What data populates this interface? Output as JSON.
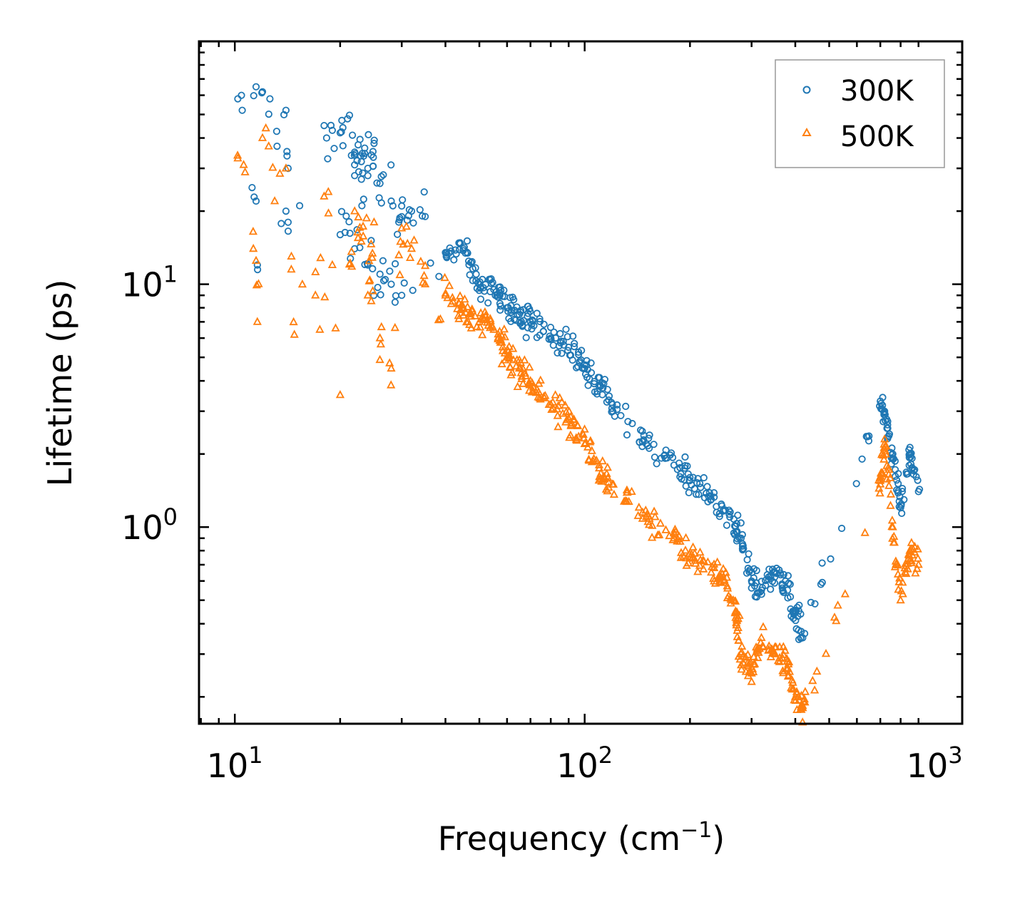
{
  "chart_data": {
    "type": "scatter",
    "xscale": "log",
    "yscale": "log",
    "xlim": [
      7.9,
      1200
    ],
    "ylim": [
      0.155,
      100
    ],
    "xlabel": "Frequency (cm",
    "xlabel_sup": "−1",
    "xlabel_tail": ")",
    "ylabel": "Lifetime (ps)",
    "x_ticks": [
      {
        "value": 10,
        "base": "10",
        "exp": "1"
      },
      {
        "value": 100,
        "base": "10",
        "exp": "2"
      },
      {
        "value": 1000,
        "base": "10",
        "exp": "3"
      }
    ],
    "y_ticks": [
      {
        "value": 1,
        "base": "10",
        "exp": "0"
      },
      {
        "value": 10,
        "base": "10",
        "exp": "1"
      }
    ],
    "legend_position": "top-right",
    "series": [
      {
        "name": "300K",
        "marker": "circle",
        "color": "#1f77b4",
        "sample_points": [
          [
            10.2,
            58
          ],
          [
            10.5,
            52
          ],
          [
            11.5,
            65
          ],
          [
            12,
            62
          ],
          [
            12.6,
            58
          ],
          [
            13.2,
            37
          ],
          [
            14,
            52
          ],
          [
            14.2,
            30
          ],
          [
            11.2,
            25
          ],
          [
            11.5,
            22
          ],
          [
            11.6,
            12
          ],
          [
            14,
            20
          ],
          [
            14.2,
            18
          ],
          [
            18,
            45
          ],
          [
            18.3,
            40
          ],
          [
            19,
            43
          ],
          [
            20,
            42
          ],
          [
            21,
            48
          ],
          [
            22,
            35
          ],
          [
            23,
            32
          ],
          [
            24,
            30
          ],
          [
            25,
            38
          ],
          [
            22,
            31
          ],
          [
            24,
            28
          ],
          [
            26,
            26
          ],
          [
            28,
            22
          ],
          [
            30,
            21
          ],
          [
            32,
            20
          ],
          [
            35,
            19
          ],
          [
            20,
            16
          ],
          [
            22,
            14
          ],
          [
            24,
            12
          ],
          [
            26,
            11
          ],
          [
            28,
            10
          ],
          [
            30,
            9
          ],
          [
            40,
            13.5
          ],
          [
            45,
            14
          ],
          [
            50,
            10
          ],
          [
            55,
            9.5
          ],
          [
            60,
            8
          ],
          [
            65,
            7.5
          ],
          [
            70,
            7
          ],
          [
            80,
            6
          ],
          [
            90,
            5.5
          ],
          [
            100,
            4.5
          ],
          [
            110,
            3.8
          ],
          [
            120,
            3.2
          ],
          [
            150,
            2.2
          ],
          [
            180,
            1.8
          ],
          [
            200,
            1.6
          ],
          [
            230,
            1.3
          ],
          [
            260,
            1.1
          ],
          [
            280,
            0.9
          ],
          [
            300,
            0.6
          ],
          [
            320,
            0.55
          ],
          [
            350,
            0.65
          ],
          [
            380,
            0.55
          ],
          [
            400,
            0.45
          ],
          [
            420,
            0.35
          ],
          [
            700,
            3.3
          ],
          [
            720,
            3.0
          ],
          [
            760,
            2.0
          ],
          [
            800,
            1.2
          ],
          [
            850,
            2.0
          ],
          [
            900,
            1.4
          ]
        ]
      },
      {
        "name": "500K",
        "marker": "triangle",
        "color": "#ff7f0e",
        "sample_points": [
          [
            10.2,
            33
          ],
          [
            10.6,
            31
          ],
          [
            11.3,
            14
          ],
          [
            11.5,
            12.5
          ],
          [
            11.6,
            7
          ],
          [
            12,
            40
          ],
          [
            12.5,
            37
          ],
          [
            13,
            22
          ],
          [
            14,
            30
          ],
          [
            14.5,
            11.5
          ],
          [
            14.8,
            6.2
          ],
          [
            18,
            23
          ],
          [
            18.5,
            24
          ],
          [
            17,
            9
          ],
          [
            17.5,
            6.5
          ],
          [
            19,
            12
          ],
          [
            20,
            3.5
          ],
          [
            22,
            20
          ],
          [
            23,
            15
          ],
          [
            25,
            18
          ],
          [
            24,
            9
          ],
          [
            26,
            6
          ],
          [
            28,
            4.5
          ],
          [
            30,
            17
          ],
          [
            32,
            14
          ],
          [
            35,
            10
          ],
          [
            40,
            9
          ],
          [
            45,
            8
          ],
          [
            50,
            7
          ],
          [
            55,
            6.5
          ],
          [
            60,
            5
          ],
          [
            65,
            4.5
          ],
          [
            70,
            4
          ],
          [
            80,
            3.2
          ],
          [
            90,
            2.8
          ],
          [
            100,
            2.2
          ],
          [
            110,
            1.8
          ],
          [
            120,
            1.5
          ],
          [
            150,
            1.1
          ],
          [
            180,
            0.9
          ],
          [
            200,
            0.75
          ],
          [
            230,
            0.65
          ],
          [
            250,
            0.6
          ],
          [
            270,
            0.45
          ],
          [
            280,
            0.3
          ],
          [
            300,
            0.25
          ],
          [
            320,
            0.35
          ],
          [
            350,
            0.3
          ],
          [
            380,
            0.28
          ],
          [
            400,
            0.2
          ],
          [
            420,
            0.18
          ],
          [
            700,
            1.5
          ],
          [
            720,
            2.3
          ],
          [
            760,
            1.0
          ],
          [
            800,
            0.5
          ],
          [
            850,
            0.8
          ],
          [
            900,
            0.7
          ]
        ]
      }
    ]
  }
}
